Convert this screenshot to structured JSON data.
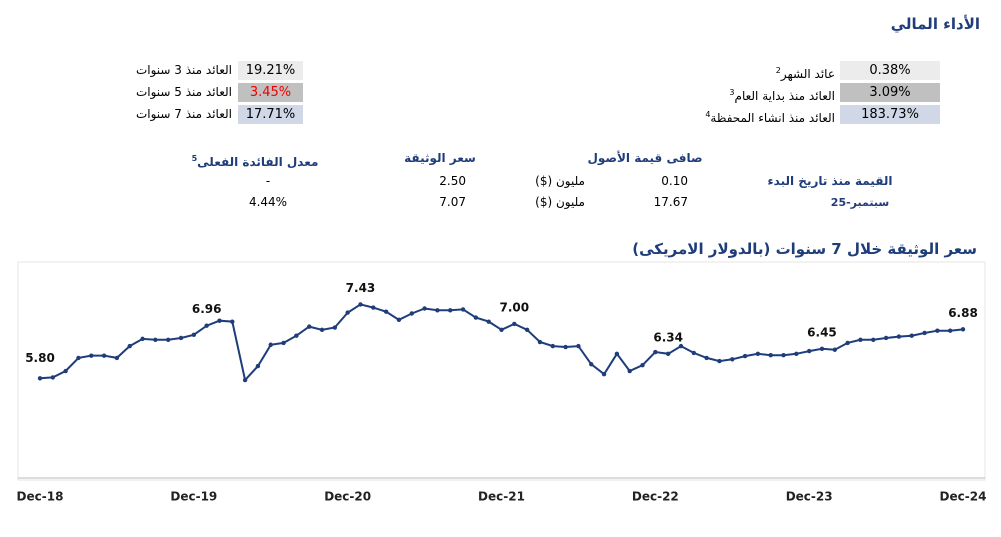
{
  "header": {
    "title": "الأداء المالي"
  },
  "returns_right": [
    {
      "label": "عائد الشهر",
      "note": "2",
      "value": "0.38%"
    },
    {
      "label": "العائد منذ بداية العام",
      "note": "3",
      "value": "3.09%"
    },
    {
      "label": "العائد منذ انشاء المحفظة",
      "note": "4",
      "value": "183.73%"
    }
  ],
  "returns_left": [
    {
      "label": "العائد منذ 3 سنوات",
      "value": "19.21%"
    },
    {
      "label": "العائد منذ 5 سنوات",
      "value": "3.45%"
    },
    {
      "label": "العائد منذ 7 سنوات",
      "value": "17.71%"
    }
  ],
  "table": {
    "headers": [
      "صافى قيمة الأصول",
      "سعر الوثيقة",
      "معدل الفائدة الفعلى",
      "5"
    ],
    "rows": [
      {
        "label": "القيمة منذ تاريخ البدء",
        "nav": "0.10",
        "nav_unit": "مليون ($)",
        "price": "2.50",
        "rate": "-"
      },
      {
        "label": "سبتمبر-25",
        "nav": "17.67",
        "nav_unit": "مليون ($)",
        "price": "7.07",
        "rate": "4.44%"
      }
    ]
  },
  "chart_data": {
    "type": "line",
    "title": "سعر الوثيقة خلال 7 سنوات (بالدولار الامريكى)",
    "color": "#1f3d7a",
    "categories": [
      "Dec-18",
      null,
      null,
      null,
      null,
      null,
      null,
      null,
      null,
      null,
      null,
      null,
      "Dec-19",
      null,
      null,
      null,
      null,
      null,
      null,
      null,
      null,
      null,
      null,
      null,
      "Dec-20",
      null,
      null,
      null,
      null,
      null,
      null,
      null,
      null,
      null,
      null,
      null,
      "Dec-21",
      null,
      null,
      null,
      null,
      null,
      null,
      null,
      null,
      null,
      null,
      null,
      "Dec-22",
      null,
      null,
      null,
      null,
      null,
      null,
      null,
      null,
      null,
      null,
      null,
      "Dec-23",
      null,
      null,
      null,
      null,
      null,
      null,
      null,
      null,
      null,
      null,
      null,
      "Dec-24"
    ],
    "values": [
      5.8,
      5.82,
      5.96,
      6.25,
      6.3,
      6.3,
      6.25,
      6.51,
      6.67,
      6.65,
      6.65,
      6.69,
      6.76,
      6.96,
      7.07,
      7.05,
      5.76,
      6.07,
      6.54,
      6.58,
      6.74,
      6.94,
      6.87,
      6.92,
      7.25,
      7.43,
      7.36,
      7.27,
      7.09,
      7.23,
      7.34,
      7.3,
      7.3,
      7.32,
      7.14,
      7.05,
      6.87,
      7.0,
      6.87,
      6.6,
      6.51,
      6.49,
      6.51,
      6.11,
      5.89,
      6.34,
      5.96,
      6.09,
      6.38,
      6.34,
      6.51,
      6.36,
      6.25,
      6.18,
      6.22,
      6.29,
      6.34,
      6.31,
      6.31,
      6.34,
      6.4,
      6.45,
      6.43,
      6.58,
      6.65,
      6.65,
      6.69,
      6.72,
      6.74,
      6.8,
      6.85,
      6.85,
      6.88
    ],
    "value_labels": [
      "5.80",
      null,
      null,
      null,
      null,
      null,
      null,
      null,
      null,
      null,
      null,
      null,
      null,
      "6.96",
      null,
      null,
      null,
      null,
      null,
      null,
      null,
      null,
      null,
      null,
      null,
      "7.43",
      null,
      null,
      null,
      null,
      null,
      null,
      null,
      null,
      null,
      null,
      null,
      "7.00",
      null,
      null,
      null,
      null,
      null,
      null,
      null,
      null,
      null,
      null,
      null,
      "6.34",
      null,
      null,
      null,
      null,
      null,
      null,
      null,
      null,
      null,
      null,
      null,
      "6.45",
      null,
      null,
      null,
      null,
      null,
      null,
      null,
      null,
      null,
      null,
      "6.88"
    ],
    "ylim": [
      3.6,
      8.3
    ]
  }
}
